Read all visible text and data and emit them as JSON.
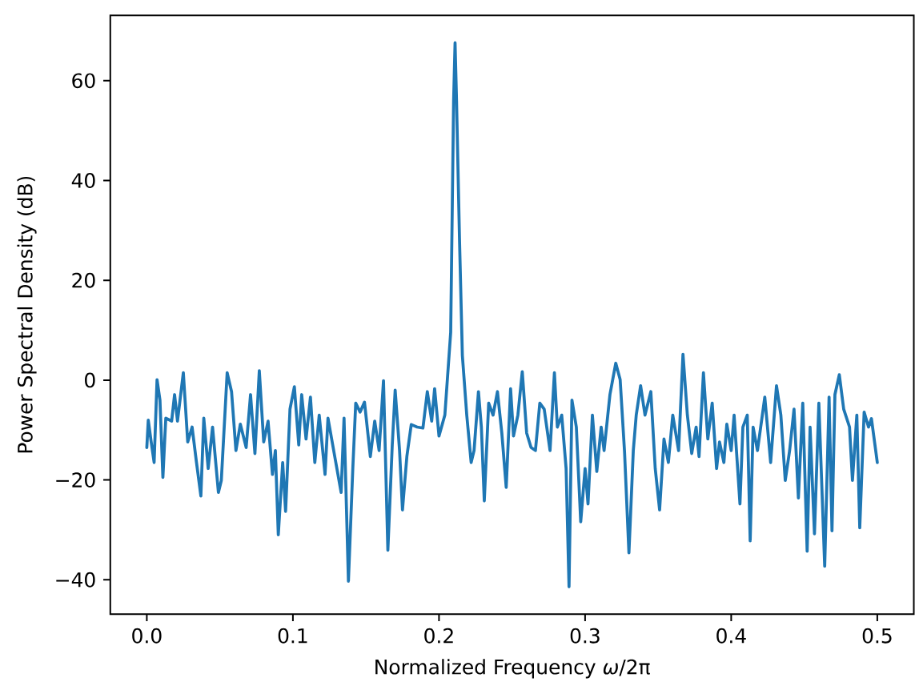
{
  "chart_data": {
    "type": "line",
    "xlabel": "Normalized Frequency *ω*/2π",
    "ylabel": "Power Spectral Density (dB)",
    "color": "#1f77b4",
    "xlim": [
      -0.025,
      0.525
    ],
    "ylim": [
      -46.9,
      73.1
    ],
    "xticks": [
      {
        "value": 0,
        "label": "0.0"
      },
      0.1,
      0.2,
      0.3,
      0.4,
      0.5
    ],
    "yticks": [
      {
        "value": -40,
        "label": "−40"
      },
      {
        "value": -20,
        "label": "−20"
      },
      0,
      20,
      40,
      60
    ],
    "x": [
      0.0,
      0.001,
      0.003,
      0.005,
      0.007,
      0.009,
      0.011,
      0.013,
      0.017,
      0.019,
      0.021,
      0.025,
      0.028,
      0.031,
      0.034,
      0.037,
      0.039,
      0.042,
      0.045,
      0.049,
      0.051,
      0.055,
      0.058,
      0.061,
      0.064,
      0.068,
      0.071,
      0.074,
      0.077,
      0.08,
      0.083,
      0.086,
      0.088,
      0.09,
      0.093,
      0.095,
      0.098,
      0.101,
      0.104,
      0.106,
      0.109,
      0.112,
      0.115,
      0.118,
      0.122,
      0.124,
      0.129,
      0.133,
      0.135,
      0.138,
      0.141,
      0.143,
      0.146,
      0.149,
      0.153,
      0.156,
      0.159,
      0.162,
      0.165,
      0.168,
      0.17,
      0.173,
      0.175,
      0.178,
      0.181,
      0.185,
      0.189,
      0.192,
      0.195,
      0.197,
      0.2,
      0.204,
      0.208,
      0.21,
      0.211,
      0.212,
      0.214,
      0.216,
      0.219,
      0.222,
      0.224,
      0.227,
      0.229,
      0.231,
      0.234,
      0.237,
      0.24,
      0.243,
      0.246,
      0.249,
      0.251,
      0.254,
      0.257,
      0.26,
      0.263,
      0.266,
      0.269,
      0.272,
      0.276,
      0.279,
      0.281,
      0.284,
      0.287,
      0.289,
      0.291,
      0.294,
      0.297,
      0.3,
      0.302,
      0.305,
      0.308,
      0.311,
      0.313,
      0.317,
      0.321,
      0.324,
      0.327,
      0.33,
      0.333,
      0.335,
      0.338,
      0.341,
      0.345,
      0.348,
      0.351,
      0.354,
      0.357,
      0.36,
      0.364,
      0.367,
      0.37,
      0.373,
      0.376,
      0.378,
      0.381,
      0.384,
      0.387,
      0.39,
      0.392,
      0.395,
      0.397,
      0.4,
      0.402,
      0.406,
      0.408,
      0.411,
      0.413,
      0.415,
      0.418,
      0.423,
      0.427,
      0.431,
      0.434,
      0.437,
      0.44,
      0.443,
      0.446,
      0.449,
      0.452,
      0.454,
      0.457,
      0.46,
      0.464,
      0.467,
      0.469,
      0.471,
      0.474,
      0.477,
      0.481,
      0.483,
      0.486,
      0.488,
      0.491,
      0.494,
      0.496,
      0.5
    ],
    "values": [
      -13.5,
      -8.0,
      -12.4,
      -16.5,
      0.1,
      -4.0,
      -19.5,
      -7.6,
      -8.2,
      -2.9,
      -8.2,
      1.5,
      -12.4,
      -9.4,
      -16.5,
      -23.2,
      -7.6,
      -17.7,
      -9.4,
      -22.5,
      -20.1,
      1.5,
      -2.3,
      -14.1,
      -8.8,
      -13.5,
      -2.9,
      -14.7,
      1.9,
      -12.4,
      -8.2,
      -18.9,
      -14.1,
      -31.0,
      -16.5,
      -26.3,
      -5.8,
      -1.3,
      -13.0,
      -2.9,
      -11.8,
      -3.4,
      -16.5,
      -7.0,
      -18.9,
      -7.6,
      -15.9,
      -22.5,
      -7.6,
      -40.3,
      -17.7,
      -4.6,
      -6.4,
      -4.4,
      -15.3,
      -8.2,
      -14.1,
      -0.1,
      -34.1,
      -13.0,
      -2.0,
      -14.1,
      -26.0,
      -15.3,
      -8.9,
      -9.4,
      -9.6,
      -2.3,
      -8.2,
      -1.7,
      -11.2,
      -7.0,
      9.6,
      56.0,
      67.6,
      56.0,
      28.6,
      4.9,
      -7.0,
      -16.5,
      -14.1,
      -2.3,
      -9.4,
      -24.2,
      -4.6,
      -7.0,
      -2.3,
      -10.6,
      -21.5,
      -1.7,
      -11.2,
      -7.0,
      1.7,
      -10.6,
      -13.5,
      -14.1,
      -4.6,
      -5.8,
      -14.1,
      1.5,
      -9.4,
      -7.0,
      -17.7,
      -41.4,
      -4.0,
      -9.4,
      -28.4,
      -17.7,
      -24.8,
      -7.0,
      -18.3,
      -9.4,
      -14.1,
      -2.9,
      3.4,
      0.1,
      -14.4,
      -34.6,
      -14.1,
      -7.0,
      -1.1,
      -7.0,
      -2.3,
      -17.7,
      -26.0,
      -11.8,
      -16.5,
      -7.0,
      -14.1,
      5.2,
      -7.0,
      -14.7,
      -9.4,
      -15.3,
      1.5,
      -11.8,
      -4.6,
      -17.7,
      -12.4,
      -16.5,
      -8.8,
      -14.1,
      -7.0,
      -24.8,
      -9.4,
      -7.0,
      -32.2,
      -9.4,
      -14.1,
      -3.4,
      -16.5,
      -1.1,
      -7.0,
      -20.1,
      -14.1,
      -5.8,
      -23.6,
      -4.6,
      -34.3,
      -9.4,
      -30.8,
      -4.6,
      -37.3,
      -3.4,
      -30.2,
      -2.9,
      1.1,
      -5.8,
      -9.4,
      -20.1,
      -7.0,
      -29.6,
      -6.4,
      -9.4,
      -7.7,
      -16.5
    ]
  }
}
